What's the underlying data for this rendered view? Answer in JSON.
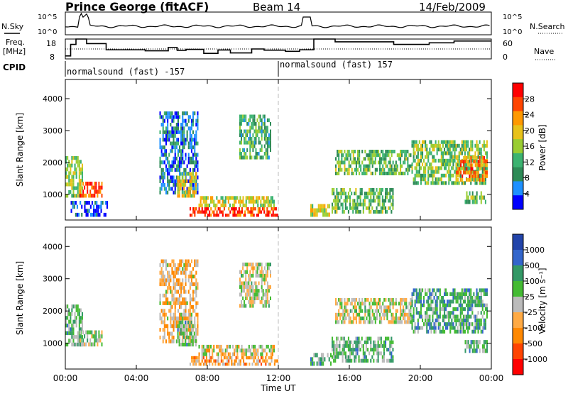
{
  "header": {
    "station": "Prince George (fitACF)",
    "beam": "Beam 14",
    "date": "14/Feb/2009"
  },
  "labels": {
    "nsky": "N.Sky",
    "freq": "Freq.",
    "freq_unit": "[MHz]",
    "cpid": "CPID",
    "nsearch": "N.Search",
    "nave": "Nave",
    "xlabel": "Time UT",
    "ylabel": "Slant Range [km]",
    "power_label": "Power [dB]",
    "velocity_label": "Velocity [m s⁻¹]"
  },
  "cpid_segments": [
    {
      "label": "normalsound (fast) -157",
      "start": 0,
      "end": 12
    },
    {
      "label": "normalsound (fast) 157",
      "start": 12,
      "end": 24
    }
  ],
  "chart_data": [
    {
      "type": "line",
      "name": "noise-panel",
      "left_ticks": [
        "10^5",
        "10^0"
      ],
      "right_ticks": [
        "10^5",
        "10^0"
      ],
      "xlim": [
        0,
        24
      ]
    },
    {
      "type": "line",
      "name": "frequency-nave-panel",
      "left_ticks": [
        "18",
        "8"
      ],
      "right_ticks": [
        "60",
        "0"
      ],
      "ylim": [
        8,
        18
      ],
      "x": [
        0,
        0.3,
        0.6,
        1.2,
        2.3,
        4.5,
        5.8,
        6.3,
        6.8,
        7.8,
        8.6,
        9.3,
        10.5,
        11.2,
        12.4,
        13.2,
        14.0,
        15.2,
        18.5,
        20.5,
        21.9,
        24
      ],
      "freq": [
        9.5,
        15.3,
        18,
        15.7,
        12.6,
        12.1,
        13.8,
        12.3,
        12.8,
        10.8,
        12.5,
        11.0,
        13.0,
        12.4,
        11.8,
        12.6,
        18,
        16.6,
        15.3,
        16.1,
        17.0,
        17.0
      ]
    },
    {
      "type": "heatmap",
      "name": "power",
      "xlabel": "Time UT",
      "ylabel": "Slant Range [km]",
      "xlim": [
        0,
        24
      ],
      "ylim": [
        200,
        4600
      ],
      "x_ticks": [
        "00:00",
        "04:00",
        "08:00",
        "12:00",
        "16:00",
        "20:00",
        "00:00"
      ],
      "y_ticks": [
        1000,
        2000,
        3000,
        4000
      ],
      "colorbar_label": "Power [dB]",
      "colorbar_ticks": [
        "28",
        "24",
        "20",
        "16",
        "12",
        "8",
        "4"
      ],
      "colorbar_colors": [
        "#ff0000",
        "#ff4500",
        "#ff9900",
        "#e8c21a",
        "#9acd32",
        "#3cb371",
        "#2e8b57",
        "#1e90ff",
        "#0000ff"
      ],
      "regions": [
        {
          "t0": 0.0,
          "t1": 1.0,
          "r0": 900,
          "r1": 2200,
          "level": 0.5
        },
        {
          "t0": 0.8,
          "t1": 2.1,
          "r0": 900,
          "r1": 1400,
          "level": 0.85
        },
        {
          "t0": 0.3,
          "t1": 2.4,
          "r0": 300,
          "r1": 800,
          "level": 0.1
        },
        {
          "t0": 5.3,
          "t1": 7.5,
          "r0": 1000,
          "r1": 3600,
          "level": 0.2
        },
        {
          "t0": 6.3,
          "t1": 7.4,
          "r0": 900,
          "r1": 1700,
          "level": 0.6
        },
        {
          "t0": 7.0,
          "t1": 12.0,
          "r0": 300,
          "r1": 600,
          "level": 0.9
        },
        {
          "t0": 7.5,
          "t1": 11.8,
          "r0": 600,
          "r1": 950,
          "level": 0.55
        },
        {
          "t0": 9.8,
          "t1": 11.6,
          "r0": 2100,
          "r1": 3500,
          "level": 0.35
        },
        {
          "t0": 13.8,
          "t1": 15.0,
          "r0": 300,
          "r1": 700,
          "level": 0.55
        },
        {
          "t0": 15.0,
          "t1": 18.5,
          "r0": 400,
          "r1": 1200,
          "level": 0.4
        },
        {
          "t0": 15.2,
          "t1": 19.5,
          "r0": 1600,
          "r1": 2400,
          "level": 0.4
        },
        {
          "t0": 19.5,
          "t1": 23.8,
          "r0": 1300,
          "r1": 2700,
          "level": 0.45
        },
        {
          "t0": 22.0,
          "t1": 23.8,
          "r0": 1400,
          "r1": 2200,
          "level": 0.75
        },
        {
          "t0": 22.5,
          "t1": 23.8,
          "r0": 700,
          "r1": 1100,
          "level": 0.45
        }
      ]
    },
    {
      "type": "heatmap",
      "name": "velocity",
      "xlabel": "Time UT",
      "ylabel": "Slant Range [km]",
      "xlim": [
        0,
        24
      ],
      "ylim": [
        200,
        4600
      ],
      "x_ticks": [
        "00:00",
        "04:00",
        "08:00",
        "12:00",
        "16:00",
        "20:00",
        "00:00"
      ],
      "y_ticks": [
        1000,
        2000,
        3000,
        4000
      ],
      "colorbar_label": "Velocity [m s⁻¹]",
      "colorbar_ticks": [
        "1000",
        "500",
        "100",
        "25",
        "-25",
        "-100",
        "-500",
        "-1000"
      ],
      "colorbar_colors": [
        "#2244aa",
        "#3366cc",
        "#339966",
        "#44bb33",
        "#bbbbbb",
        "#ffaa44",
        "#ff8800",
        "#ff4400",
        "#ff0000"
      ],
      "regions": [
        {
          "t0": 0.0,
          "t1": 1.0,
          "r0": 900,
          "r1": 2200,
          "level": 0.62
        },
        {
          "t0": 0.8,
          "t1": 2.1,
          "r0": 900,
          "r1": 1400,
          "level": 0.55
        },
        {
          "t0": 5.3,
          "t1": 7.5,
          "r0": 1000,
          "r1": 3600,
          "level": 0.4
        },
        {
          "t0": 6.3,
          "t1": 7.4,
          "r0": 900,
          "r1": 1700,
          "level": 0.62
        },
        {
          "t0": 7.0,
          "t1": 12.0,
          "r0": 300,
          "r1": 600,
          "level": 0.35
        },
        {
          "t0": 7.5,
          "t1": 11.8,
          "r0": 600,
          "r1": 950,
          "level": 0.48
        },
        {
          "t0": 9.8,
          "t1": 11.6,
          "r0": 2100,
          "r1": 3500,
          "level": 0.5
        },
        {
          "t0": 13.8,
          "t1": 15.0,
          "r0": 300,
          "r1": 700,
          "level": 0.62
        },
        {
          "t0": 15.0,
          "t1": 18.5,
          "r0": 400,
          "r1": 1200,
          "level": 0.62
        },
        {
          "t0": 15.2,
          "t1": 19.5,
          "r0": 1600,
          "r1": 2400,
          "level": 0.5
        },
        {
          "t0": 19.5,
          "t1": 23.8,
          "r0": 1300,
          "r1": 2700,
          "level": 0.68
        },
        {
          "t0": 22.5,
          "t1": 23.8,
          "r0": 700,
          "r1": 1100,
          "level": 0.65
        }
      ]
    }
  ]
}
